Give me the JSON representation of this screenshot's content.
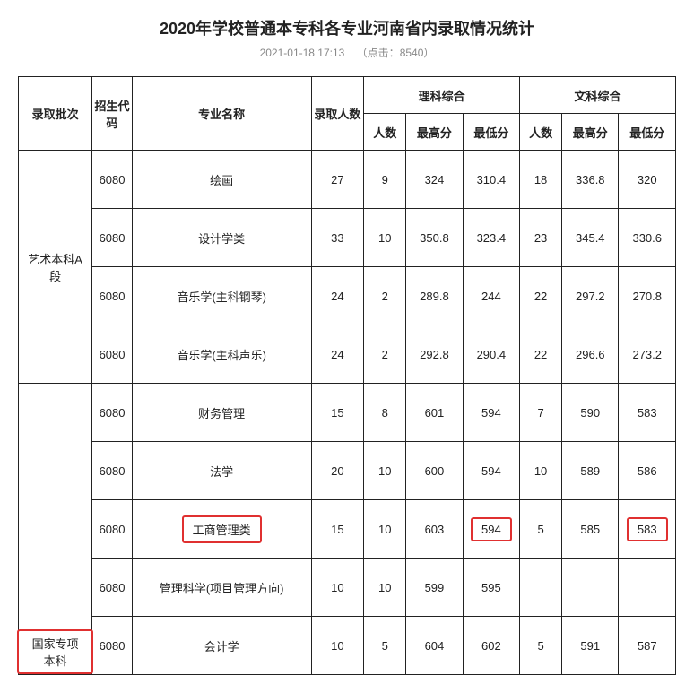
{
  "title": "2020年学校普通本专科各专业河南省内录取情况统计",
  "subtitle_date": "2021-01-18 17:13",
  "subtitle_hits_label": "（点击：",
  "subtitle_hits_value": "8540",
  "subtitle_hits_close": "）",
  "headers": {
    "batch": "录取批次",
    "code": "招生代码",
    "major": "专业名称",
    "enroll": "录取人数",
    "sci_group": "理科综合",
    "art_group": "文科综合",
    "count": "人数",
    "max": "最高分",
    "min": "最低分"
  },
  "batches": [
    {
      "name": "艺术本科A段",
      "rows": [
        {
          "code": "6080",
          "major": "绘画",
          "enroll": "27",
          "sc": "9",
          "smax": "324",
          "smin": "310.4",
          "ac": "18",
          "amax": "336.8",
          "amin": "320"
        },
        {
          "code": "6080",
          "major": "设计学类",
          "enroll": "33",
          "sc": "10",
          "smax": "350.8",
          "smin": "323.4",
          "ac": "23",
          "amax": "345.4",
          "amin": "330.6"
        },
        {
          "code": "6080",
          "major": "音乐学(主科钢琴)",
          "enroll": "24",
          "sc": "2",
          "smax": "289.8",
          "smin": "244",
          "ac": "22",
          "amax": "297.2",
          "amin": "270.8"
        },
        {
          "code": "6080",
          "major": "音乐学(主科声乐)",
          "enroll": "24",
          "sc": "2",
          "smax": "292.8",
          "smin": "290.4",
          "ac": "22",
          "amax": "296.6",
          "amin": "273.2"
        }
      ]
    },
    {
      "name": "国家专项本科",
      "highlight_name": true,
      "rows": [
        {
          "code": "6080",
          "major": "财务管理",
          "enroll": "15",
          "sc": "8",
          "smax": "601",
          "smin": "594",
          "ac": "7",
          "amax": "590",
          "amin": "583"
        },
        {
          "code": "6080",
          "major": "法学",
          "enroll": "20",
          "sc": "10",
          "smax": "600",
          "smin": "594",
          "ac": "10",
          "amax": "589",
          "amin": "586"
        },
        {
          "code": "6080",
          "major": "工商管理类",
          "enroll": "15",
          "sc": "10",
          "smax": "603",
          "smin": "594",
          "ac": "5",
          "amax": "585",
          "amin": "583",
          "hl_major": true,
          "hl_smin": true,
          "hl_amin": true
        },
        {
          "code": "6080",
          "major": "管理科学(项目管理方向)",
          "enroll": "10",
          "sc": "10",
          "smax": "599",
          "smin": "595",
          "ac": "",
          "amax": "",
          "amin": ""
        },
        {
          "code": "6080",
          "major": "会计学",
          "enroll": "10",
          "sc": "5",
          "smax": "604",
          "smin": "602",
          "ac": "5",
          "amax": "591",
          "amin": "587"
        }
      ]
    }
  ],
  "colors": {
    "border": "#222222",
    "highlight": "#e03030",
    "bg": "#ffffff",
    "text": "#222222",
    "subtitle": "#888888"
  }
}
